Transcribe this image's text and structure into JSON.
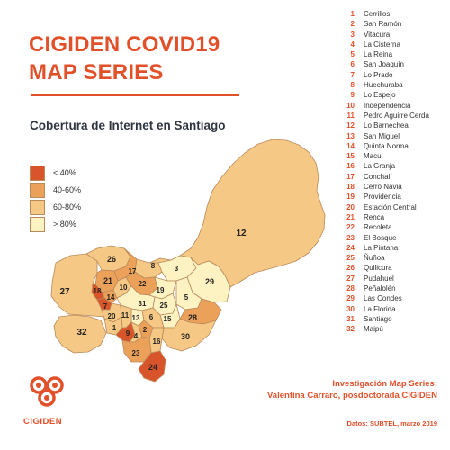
{
  "title": {
    "line1": "CIGIDEN COVID19",
    "line2": "MAP SERIES"
  },
  "subtitle": "Cobertura de Internet en Santiago",
  "colors": {
    "accent": "#e2502a",
    "lt40": "#d8542a",
    "c40_60": "#eca15a",
    "c60_80": "#f5c885",
    "gt80": "#fcf2c2",
    "border": "#b98a5a"
  },
  "legend": [
    {
      "label": "< 40%",
      "color": "#d8542a"
    },
    {
      "label": "40-60%",
      "color": "#eca15a"
    },
    {
      "label": "60-80%",
      "color": "#f5c885"
    },
    {
      "label": "> 80%",
      "color": "#fcf2c2"
    }
  ],
  "comunas": [
    {
      "num": "1",
      "name": "Cerrillos"
    },
    {
      "num": "2",
      "name": "San Ramón"
    },
    {
      "num": "3",
      "name": "Vitacura"
    },
    {
      "num": "4",
      "name": "La Cisterna"
    },
    {
      "num": "5",
      "name": "La Reina"
    },
    {
      "num": "6",
      "name": "San Joaquín"
    },
    {
      "num": "7",
      "name": "Lo Prado"
    },
    {
      "num": "8",
      "name": "Huechuraba"
    },
    {
      "num": "9",
      "name": "Lo Espejo"
    },
    {
      "num": "10",
      "name": "Independencia"
    },
    {
      "num": "11",
      "name": "Pedro Aguirre Cerda"
    },
    {
      "num": "12",
      "name": "Lo Barnechea"
    },
    {
      "num": "13",
      "name": "San Miguel"
    },
    {
      "num": "14",
      "name": "Quinta Normal"
    },
    {
      "num": "15",
      "name": "Macul"
    },
    {
      "num": "16",
      "name": "La Granja"
    },
    {
      "num": "17",
      "name": "Conchalí"
    },
    {
      "num": "18",
      "name": "Cerro Navia"
    },
    {
      "num": "19",
      "name": "Providencia"
    },
    {
      "num": "20",
      "name": "Estación Central"
    },
    {
      "num": "21",
      "name": "Renca"
    },
    {
      "num": "22",
      "name": "Recoleta"
    },
    {
      "num": "23",
      "name": "El Bosque"
    },
    {
      "num": "24",
      "name": "La Pintana"
    },
    {
      "num": "25",
      "name": "Ñuñoa"
    },
    {
      "num": "26",
      "name": "Quilicura"
    },
    {
      "num": "27",
      "name": "Pudahuel"
    },
    {
      "num": "28",
      "name": "Peñalolén"
    },
    {
      "num": "29",
      "name": "Las Condes"
    },
    {
      "num": "30",
      "name": "La Florida"
    },
    {
      "num": "31",
      "name": "Santiago"
    },
    {
      "num": "32",
      "name": "Maipú"
    }
  ],
  "map_labels": {
    "m1": "1",
    "m2": "2",
    "m3": "3",
    "m4": "4",
    "m5": "5",
    "m6": "6",
    "m7": "7",
    "m8": "8",
    "m9": "9",
    "m10": "10",
    "m11": "11",
    "m12": "12",
    "m13": "13",
    "m14": "14",
    "m15": "15",
    "m16": "16",
    "m17": "17",
    "m18": "18",
    "m19": "19",
    "m20": "20",
    "m21": "21",
    "m22": "22",
    "m23": "23",
    "m24": "24",
    "m25": "25",
    "m26": "26",
    "m27": "27",
    "m28": "28",
    "m29": "29",
    "m30": "30",
    "m31": "31",
    "m32": "32"
  },
  "credit": {
    "line1": "Investigación Map Series:",
    "line2": "Valentina Carraro, posdoctorada CIGIDEN"
  },
  "source": "Datos: SUBTEL, marzo 2019",
  "logo_text": "CIGIDEN"
}
